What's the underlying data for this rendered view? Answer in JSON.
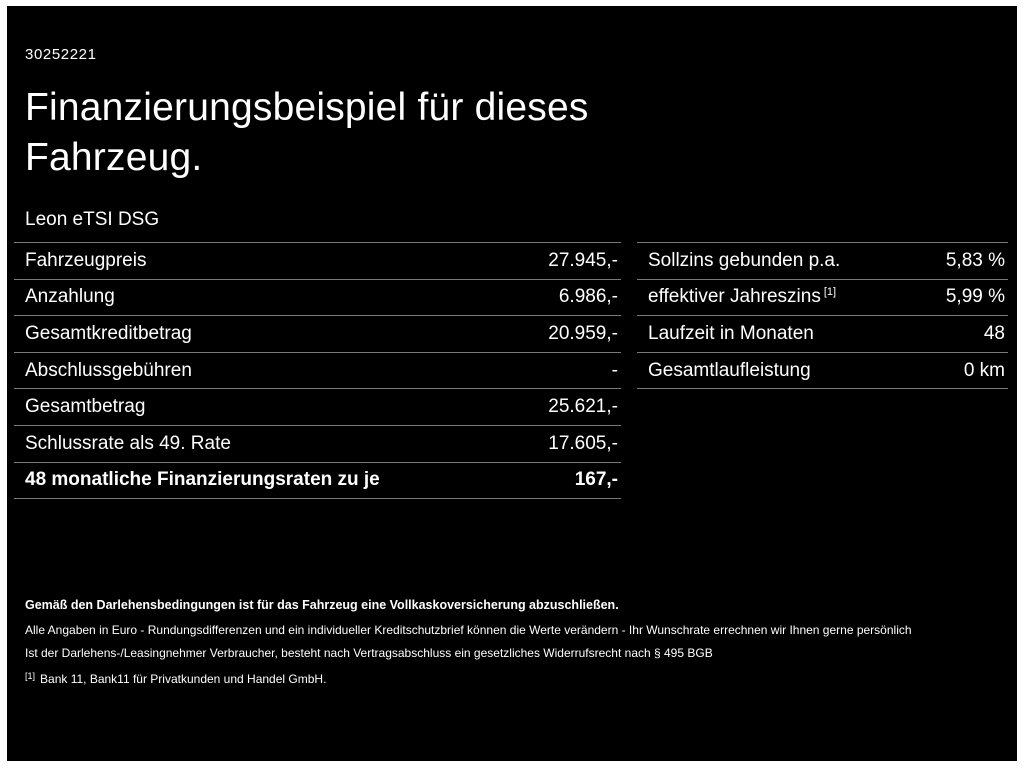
{
  "header": {
    "id_number": "30252221",
    "title_line1": "Finanzierungsbeispiel für dieses",
    "title_line2": "Fahrzeug.",
    "model": "Leon eTSI DSG"
  },
  "left_table": {
    "rows": [
      {
        "label": "Fahrzeugpreis",
        "value": "27.945,-"
      },
      {
        "label": "Anzahlung",
        "value": "6.986,-"
      },
      {
        "label": "Gesamtkreditbetrag",
        "value": "20.959,-"
      },
      {
        "label": "Abschlussgebühren",
        "value": "-"
      },
      {
        "label": "Gesamtbetrag",
        "value": "25.621,-"
      },
      {
        "label": "Schlussrate als 49. Rate",
        "value": "17.605,-"
      },
      {
        "label": "48 monatliche Finanzierungsraten zu je",
        "value": "167,-"
      }
    ]
  },
  "right_table": {
    "rows": [
      {
        "label": "Sollzins gebunden p.a.",
        "value": "5,83 %"
      },
      {
        "label": "effektiver Jahreszins",
        "sup": "[1]",
        "value": "5,99 %"
      },
      {
        "label": "Laufzeit in Monaten",
        "value": "48"
      },
      {
        "label": "Gesamtlaufleistung",
        "value": "0 km"
      }
    ]
  },
  "footer": {
    "line1": "Gemäß den Darlehensbedingungen ist für das Fahrzeug eine Vollkaskoversicherung abzuschließen.",
    "line2": "Alle Angaben in Euro - Rundungsdifferenzen und ein individueller Kreditschutzbrief können die Werte verändern - Ihr Wunschrate errechnen wir Ihnen gerne persönlich",
    "line3": "Ist der Darlehens-/Leasingnehmer Verbraucher, besteht nach Vertragsabschluss ein gesetzliches Widerrufsrecht nach § 495 BGB",
    "footnote_marker": "[1]",
    "footnote_text": "Bank 11, Bank11 für Privatkunden und Handel GmbH."
  },
  "colors": {
    "background": "#000000",
    "frame": "#ffffff",
    "text": "#ffffff",
    "divider": "#7a7a7a"
  }
}
